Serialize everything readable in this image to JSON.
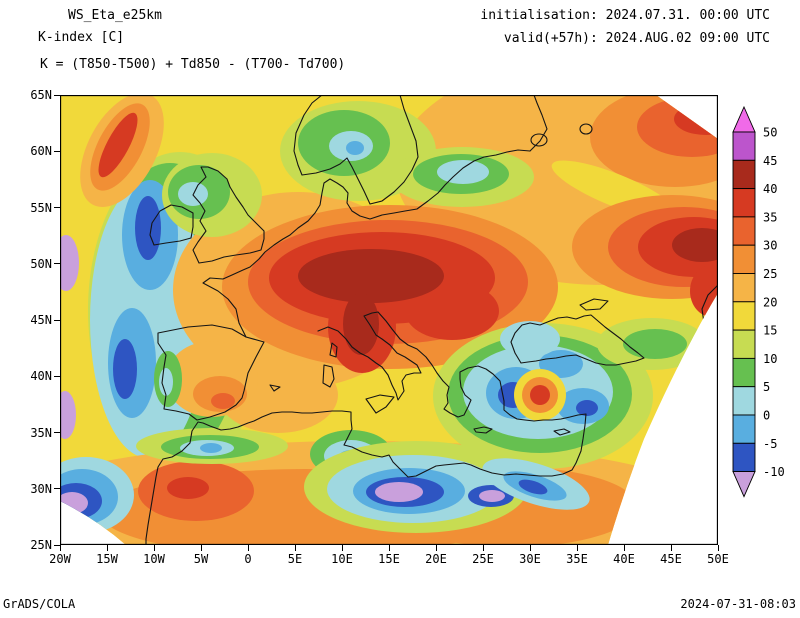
{
  "header": {
    "model": "WS_Eta_e25km",
    "parameter": "K-index [C]",
    "formula": "K = (T850-T500) + Td850 - (T700- Td700)",
    "init_line": "initialisation: 2024.07.31. 00:00 UTC",
    "valid_line": "valid(+57h): 2024.AUG.02 09:00 UTC"
  },
  "axes": {
    "lat_labels": [
      "65N",
      "60N",
      "55N",
      "50N",
      "45N",
      "40N",
      "35N",
      "30N",
      "25N"
    ],
    "lon_labels": [
      "20W",
      "15W",
      "10W",
      "5W",
      "0",
      "5E",
      "10E",
      "15E",
      "20E",
      "25E",
      "30E",
      "35E",
      "40E",
      "45E",
      "50E"
    ]
  },
  "colorbar": {
    "labels": [
      "50",
      "45",
      "40",
      "35",
      "30",
      "25",
      "20",
      "15",
      "10",
      "5",
      "0",
      "-5",
      "-10"
    ],
    "colors_top_to_bottom": [
      "#f06ae8",
      "#bc55cc",
      "#a82a1c",
      "#d63a22",
      "#e9632e",
      "#f18f35",
      "#f5b447",
      "#f1d93a",
      "#c7dc52",
      "#66c050",
      "#9fd8e0",
      "#59aee0",
      "#2e55c2",
      "#c9a0dc"
    ]
  },
  "footer": {
    "left": "GrADS/COLA",
    "right": "2024-07-31-08:03"
  },
  "chart_data": {
    "type": "heatmap",
    "subtype": "filled-contour-weather-map",
    "model": "WS_Eta_e25km",
    "variable": "K-index [C]",
    "formula": "K = (T850-T500) + Td850 - (T700- Td700)",
    "initialisation": "2024.07.31. 00:00 UTC",
    "valid": "2024.AUG.02 09:00 UTC (+57h)",
    "lon_range_deg": [
      -20,
      50
    ],
    "lat_range_deg": [
      25,
      65
    ],
    "x_tick_labels": [
      "20W",
      "15W",
      "10W",
      "5W",
      "0",
      "5E",
      "10E",
      "15E",
      "20E",
      "25E",
      "30E",
      "35E",
      "40E",
      "45E",
      "50E"
    ],
    "y_tick_labels": [
      "65N",
      "60N",
      "55N",
      "50N",
      "45N",
      "40N",
      "35N",
      "30N",
      "25N"
    ],
    "contour_levels": [
      -10,
      -5,
      0,
      5,
      10,
      15,
      20,
      25,
      30,
      35,
      40,
      45,
      50
    ],
    "palette_low_to_high": [
      "#c9a0dc",
      "#2e55c2",
      "#59aee0",
      "#9fd8e0",
      "#66c050",
      "#c7dc52",
      "#f1d93a",
      "#f5b447",
      "#f18f35",
      "#e9632e",
      "#d63a22",
      "#a82a1c",
      "#bc55cc",
      "#f06ae8"
    ],
    "regions": [
      {
        "area": "central Europe: E France, Germany, Alps, N Italy, W Balkans (44-52N, 0-25E)",
        "k_index": "35-45"
      },
      {
        "area": "Apennines / Italy (40-45N, 8-15E)",
        "k_index": "35-45"
      },
      {
        "area": "W Russia band near right edge (45-55N, 38-50E)",
        "k_index": "35-45"
      },
      {
        "area": "NE corner / N Russia (60-65N, 40-50E)",
        "k_index": "30-40"
      },
      {
        "area": "Scandinavia and Baltic (55-65N, 5-30E)",
        "k_index": "0-20"
      },
      {
        "area": "British Isles",
        "k_index": "5-20"
      },
      {
        "area": "E Atlantic meridional band near 15-18W (30-57N)",
        "k_index": "-10 to 5"
      },
      {
        "area": "far W edge patches near 19W at 36N, 50N and SW corner",
        "k_index": "below -10"
      },
      {
        "area": "Aegean, W Turkey, E Mediterranean (34-42N, 22-37E)",
        "k_index": "-10 to 5"
      },
      {
        "area": "isolated maximum near 38N 31E (SW Turkey)",
        "k_index": "35-40"
      },
      {
        "area": "C Libya / NE Africa lows (27-32N, 12-30E)",
        "k_index": "below -10 to -5"
      },
      {
        "area": "NW Africa: Morocco, Algeria",
        "k_index": "25-40"
      }
    ]
  }
}
